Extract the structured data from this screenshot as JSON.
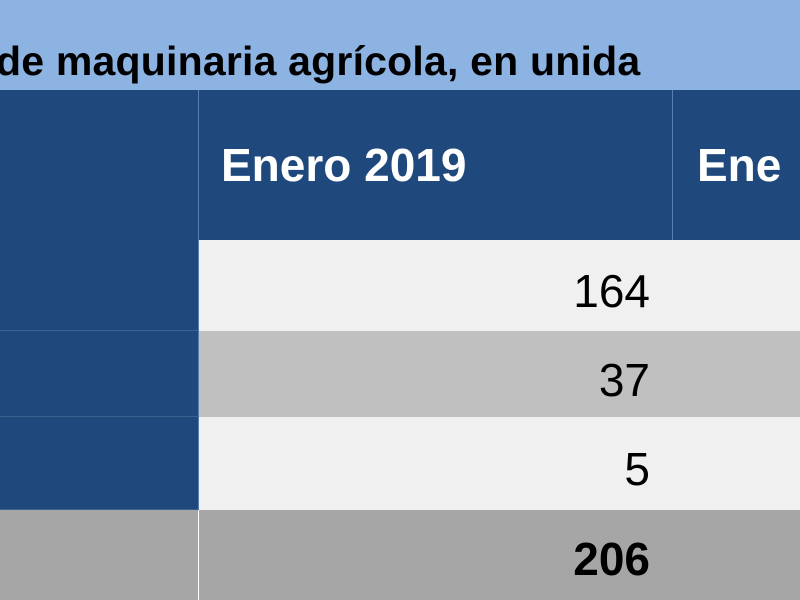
{
  "title": "de maquinaria agrícola, en unida",
  "table": {
    "headers": [
      "",
      "Enero 2019",
      "Ene"
    ],
    "rows": [
      {
        "label": "",
        "value": "164"
      },
      {
        "label": "",
        "value": "37"
      },
      {
        "label": "",
        "value": "5"
      }
    ],
    "total": {
      "label": "",
      "value": "206"
    }
  },
  "colors": {
    "title_bg": "#8db3e2",
    "header_bg": "#1f497d",
    "row_light": "#f0f0f0",
    "row_gray": "#c0c0c0",
    "total_bg": "#a6a6a6"
  }
}
